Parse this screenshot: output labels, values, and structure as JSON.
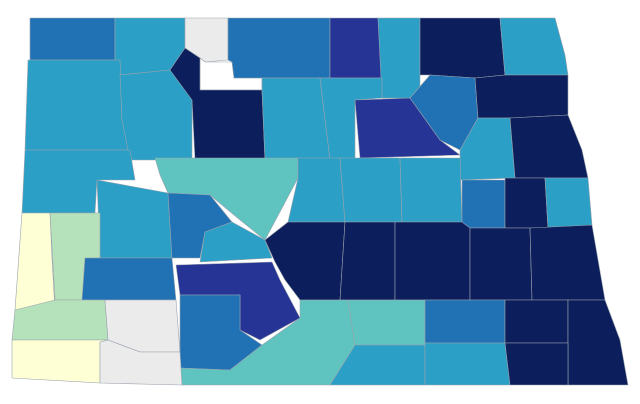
{
  "map": {
    "regions": [
      {
        "color": "#2171b5"
      },
      {
        "color": "#2b9fc5"
      },
      {
        "color": "#ebebeb"
      },
      {
        "color": "#ffffff"
      },
      {
        "color": "#2171b5"
      },
      {
        "color": "#263496"
      },
      {
        "color": "#2b9fc5"
      },
      {
        "color": "#0c1f5c"
      },
      {
        "color": "#2b9fc5"
      },
      {
        "color": "#2b9fc5"
      },
      {
        "color": "#2b9fc5"
      },
      {
        "color": "#0c1f5c"
      },
      {
        "color": "#2b9fc5"
      },
      {
        "color": "#2b9fc5"
      },
      {
        "color": "#263496"
      },
      {
        "color": "#2171b5"
      },
      {
        "color": "#0c1f5c"
      },
      {
        "color": "#2b9fc5"
      },
      {
        "color": "#0c1f5c"
      },
      {
        "color": "#2b9fc5"
      },
      {
        "color": "#5fc3c0"
      },
      {
        "color": "#2b9fc5"
      },
      {
        "color": "#2b9fc5"
      },
      {
        "color": "#2b9fc5"
      },
      {
        "color": "#2171b5"
      },
      {
        "color": "#0c1f5c"
      },
      {
        "color": "#2b9fc5"
      },
      {
        "color": "#2b9fc5"
      },
      {
        "color": "#2171b5"
      },
      {
        "color": "#2b9fc5"
      },
      {
        "color": "#ffffd6"
      },
      {
        "color": "#b5e2bb"
      },
      {
        "color": "#0c1f5c"
      },
      {
        "color": "#0c1f5c"
      },
      {
        "color": "#0c1f5c"
      },
      {
        "color": "#0c1f5c"
      },
      {
        "color": "#0c1f5c"
      },
      {
        "color": "#2171b5"
      },
      {
        "color": "#263496"
      },
      {
        "color": "#b5e2bb"
      },
      {
        "color": "#ebebeb"
      },
      {
        "color": "#2171b5"
      },
      {
        "color": "#5fc3c0"
      },
      {
        "color": "#5fc3c0"
      },
      {
        "color": "#2171b5"
      },
      {
        "color": "#0c1f5c"
      },
      {
        "color": "#0c1f5c"
      },
      {
        "color": "#ffffd6"
      },
      {
        "color": "#ebebeb"
      },
      {
        "color": "#2b9fc5"
      },
      {
        "color": "#2b9fc5"
      },
      {
        "color": "#0c1f5c"
      }
    ]
  }
}
